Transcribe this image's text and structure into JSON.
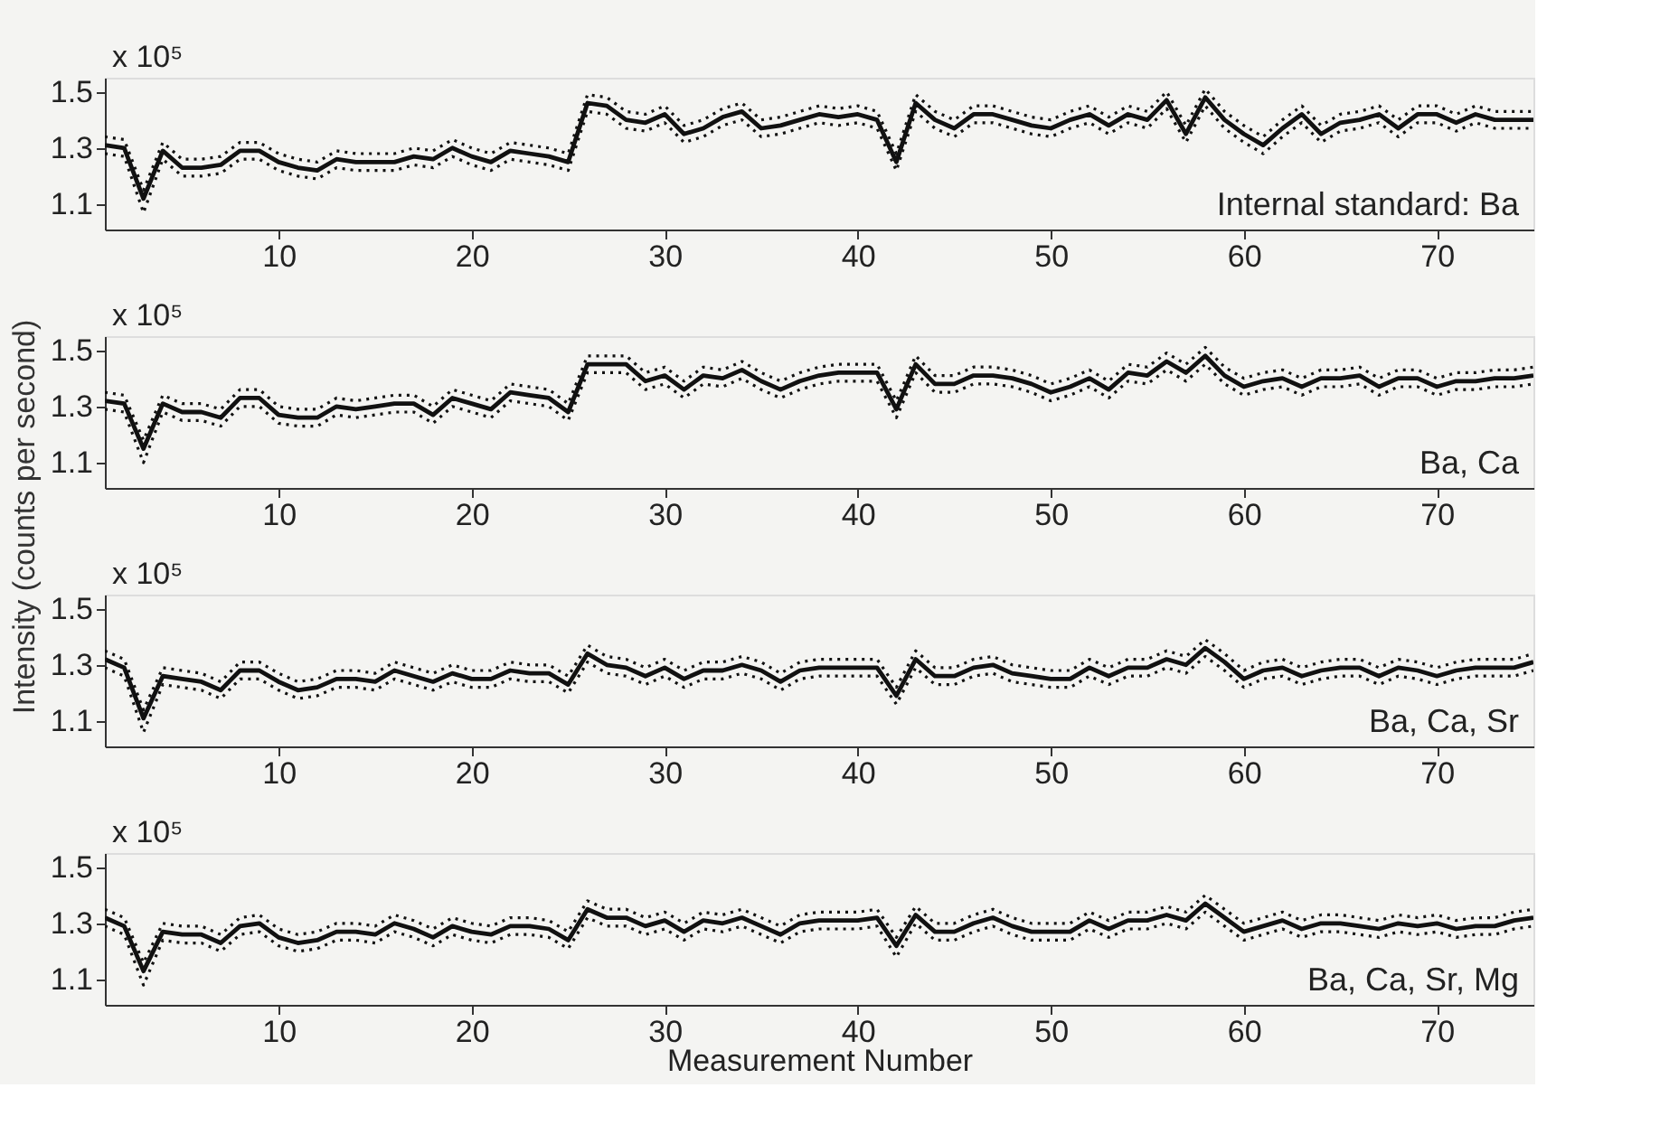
{
  "chart_data": [
    {
      "type": "line",
      "ylabel": "Intensity (counts per second)",
      "annotations": [
        "x 10⁵",
        "Internal standard: Ba"
      ],
      "xlim": [
        1,
        75
      ],
      "xticks": [
        10,
        20,
        30,
        40,
        50,
        60,
        70
      ],
      "ylim": [
        1.01,
        1.55
      ],
      "yticks": [
        1.1,
        1.3,
        1.5
      ],
      "grid": false,
      "legend": false,
      "x": [
        1,
        2,
        3,
        4,
        5,
        6,
        7,
        8,
        9,
        10,
        11,
        12,
        13,
        14,
        15,
        16,
        17,
        18,
        19,
        20,
        21,
        22,
        23,
        24,
        25,
        26,
        27,
        28,
        29,
        30,
        31,
        32,
        33,
        34,
        35,
        36,
        37,
        38,
        39,
        40,
        41,
        42,
        43,
        44,
        45,
        46,
        47,
        48,
        49,
        50,
        51,
        52,
        53,
        54,
        55,
        56,
        57,
        58,
        59,
        60,
        61,
        62,
        63,
        64,
        65,
        66,
        67,
        68,
        69,
        70,
        71,
        72,
        73,
        74,
        75
      ],
      "series": [
        {
          "color": "#111111",
          "line_style": "solid",
          "values": [
            1.31,
            1.3,
            1.12,
            1.29,
            1.23,
            1.23,
            1.24,
            1.29,
            1.29,
            1.25,
            1.23,
            1.22,
            1.26,
            1.25,
            1.25,
            1.25,
            1.27,
            1.26,
            1.3,
            1.27,
            1.25,
            1.29,
            1.28,
            1.27,
            1.25,
            1.46,
            1.45,
            1.4,
            1.39,
            1.42,
            1.35,
            1.37,
            1.41,
            1.43,
            1.37,
            1.38,
            1.4,
            1.42,
            1.41,
            1.42,
            1.4,
            1.25,
            1.46,
            1.4,
            1.37,
            1.42,
            1.42,
            1.4,
            1.38,
            1.37,
            1.4,
            1.42,
            1.38,
            1.42,
            1.4,
            1.47,
            1.35,
            1.48,
            1.4,
            1.35,
            1.31,
            1.37,
            1.42,
            1.35,
            1.39,
            1.4,
            1.42,
            1.37,
            1.42,
            1.42,
            1.39,
            1.42,
            1.4,
            1.4,
            1.4
          ]
        },
        {
          "color": "#111111",
          "line_style": "dotted",
          "values": [
            1.34,
            1.33,
            1.15,
            1.32,
            1.26,
            1.26,
            1.27,
            1.32,
            1.32,
            1.28,
            1.26,
            1.25,
            1.29,
            1.28,
            1.28,
            1.28,
            1.3,
            1.29,
            1.33,
            1.3,
            1.28,
            1.32,
            1.31,
            1.3,
            1.28,
            1.49,
            1.48,
            1.43,
            1.42,
            1.45,
            1.38,
            1.4,
            1.44,
            1.46,
            1.4,
            1.41,
            1.43,
            1.45,
            1.44,
            1.45,
            1.43,
            1.28,
            1.49,
            1.43,
            1.4,
            1.45,
            1.45,
            1.43,
            1.41,
            1.4,
            1.43,
            1.45,
            1.41,
            1.45,
            1.43,
            1.5,
            1.38,
            1.51,
            1.43,
            1.38,
            1.34,
            1.4,
            1.45,
            1.38,
            1.42,
            1.43,
            1.45,
            1.4,
            1.45,
            1.45,
            1.42,
            1.45,
            1.43,
            1.43,
            1.43
          ]
        },
        {
          "color": "#111111",
          "line_style": "dotted",
          "values": [
            1.28,
            1.27,
            1.07,
            1.26,
            1.2,
            1.2,
            1.21,
            1.26,
            1.26,
            1.22,
            1.2,
            1.19,
            1.23,
            1.22,
            1.22,
            1.22,
            1.24,
            1.23,
            1.27,
            1.24,
            1.22,
            1.26,
            1.25,
            1.24,
            1.22,
            1.43,
            1.42,
            1.37,
            1.36,
            1.39,
            1.32,
            1.34,
            1.38,
            1.4,
            1.34,
            1.35,
            1.37,
            1.39,
            1.38,
            1.39,
            1.37,
            1.22,
            1.43,
            1.37,
            1.34,
            1.39,
            1.39,
            1.37,
            1.35,
            1.34,
            1.37,
            1.39,
            1.35,
            1.39,
            1.37,
            1.44,
            1.32,
            1.45,
            1.37,
            1.32,
            1.28,
            1.34,
            1.39,
            1.32,
            1.36,
            1.37,
            1.39,
            1.34,
            1.39,
            1.39,
            1.36,
            1.39,
            1.37,
            1.37,
            1.37
          ]
        }
      ]
    },
    {
      "type": "line",
      "annotations": [
        "x 10⁵",
        "Ba, Ca"
      ],
      "xlim": [
        1,
        75
      ],
      "xticks": [
        10,
        20,
        30,
        40,
        50,
        60,
        70
      ],
      "ylim": [
        1.01,
        1.55
      ],
      "yticks": [
        1.1,
        1.3,
        1.5
      ],
      "grid": false,
      "legend": false,
      "x": [
        1,
        2,
        3,
        4,
        5,
        6,
        7,
        8,
        9,
        10,
        11,
        12,
        13,
        14,
        15,
        16,
        17,
        18,
        19,
        20,
        21,
        22,
        23,
        24,
        25,
        26,
        27,
        28,
        29,
        30,
        31,
        32,
        33,
        34,
        35,
        36,
        37,
        38,
        39,
        40,
        41,
        42,
        43,
        44,
        45,
        46,
        47,
        48,
        49,
        50,
        51,
        52,
        53,
        54,
        55,
        56,
        57,
        58,
        59,
        60,
        61,
        62,
        63,
        64,
        65,
        66,
        67,
        68,
        69,
        70,
        71,
        72,
        73,
        74,
        75
      ],
      "series": [
        {
          "color": "#111111",
          "line_style": "solid",
          "values": [
            1.32,
            1.31,
            1.15,
            1.31,
            1.28,
            1.28,
            1.26,
            1.33,
            1.33,
            1.27,
            1.26,
            1.26,
            1.3,
            1.29,
            1.3,
            1.31,
            1.31,
            1.27,
            1.33,
            1.31,
            1.29,
            1.35,
            1.34,
            1.33,
            1.28,
            1.45,
            1.45,
            1.45,
            1.39,
            1.41,
            1.36,
            1.41,
            1.4,
            1.43,
            1.39,
            1.36,
            1.39,
            1.41,
            1.42,
            1.42,
            1.42,
            1.29,
            1.45,
            1.38,
            1.38,
            1.41,
            1.41,
            1.4,
            1.38,
            1.35,
            1.37,
            1.4,
            1.36,
            1.42,
            1.41,
            1.46,
            1.42,
            1.48,
            1.41,
            1.37,
            1.39,
            1.4,
            1.37,
            1.4,
            1.4,
            1.41,
            1.37,
            1.4,
            1.4,
            1.37,
            1.39,
            1.39,
            1.4,
            1.4,
            1.41
          ]
        },
        {
          "color": "#111111",
          "line_style": "dotted",
          "values": [
            1.35,
            1.34,
            1.18,
            1.34,
            1.31,
            1.31,
            1.29,
            1.36,
            1.36,
            1.3,
            1.29,
            1.29,
            1.33,
            1.32,
            1.33,
            1.34,
            1.34,
            1.3,
            1.36,
            1.34,
            1.32,
            1.38,
            1.37,
            1.36,
            1.31,
            1.48,
            1.48,
            1.48,
            1.42,
            1.44,
            1.39,
            1.44,
            1.43,
            1.46,
            1.42,
            1.39,
            1.42,
            1.44,
            1.45,
            1.45,
            1.45,
            1.32,
            1.48,
            1.41,
            1.41,
            1.44,
            1.44,
            1.43,
            1.41,
            1.38,
            1.4,
            1.43,
            1.39,
            1.45,
            1.44,
            1.49,
            1.45,
            1.51,
            1.44,
            1.4,
            1.42,
            1.43,
            1.4,
            1.43,
            1.43,
            1.44,
            1.4,
            1.43,
            1.43,
            1.4,
            1.42,
            1.42,
            1.43,
            1.43,
            1.44
          ]
        },
        {
          "color": "#111111",
          "line_style": "dotted",
          "values": [
            1.29,
            1.28,
            1.1,
            1.28,
            1.25,
            1.25,
            1.23,
            1.3,
            1.3,
            1.24,
            1.23,
            1.23,
            1.27,
            1.26,
            1.27,
            1.28,
            1.28,
            1.24,
            1.3,
            1.28,
            1.26,
            1.32,
            1.31,
            1.3,
            1.25,
            1.42,
            1.42,
            1.42,
            1.36,
            1.38,
            1.33,
            1.38,
            1.37,
            1.4,
            1.36,
            1.33,
            1.36,
            1.38,
            1.39,
            1.39,
            1.39,
            1.26,
            1.42,
            1.35,
            1.35,
            1.38,
            1.38,
            1.37,
            1.35,
            1.32,
            1.34,
            1.37,
            1.33,
            1.39,
            1.38,
            1.43,
            1.39,
            1.45,
            1.38,
            1.34,
            1.36,
            1.37,
            1.34,
            1.37,
            1.37,
            1.38,
            1.34,
            1.37,
            1.37,
            1.34,
            1.36,
            1.36,
            1.37,
            1.37,
            1.38
          ]
        }
      ]
    },
    {
      "type": "line",
      "annotations": [
        "x 10⁵",
        "Ba, Ca, Sr"
      ],
      "xlim": [
        1,
        75
      ],
      "xticks": [
        10,
        20,
        30,
        40,
        50,
        60,
        70
      ],
      "ylim": [
        1.01,
        1.55
      ],
      "yticks": [
        1.1,
        1.3,
        1.5
      ],
      "grid": false,
      "legend": false,
      "x": [
        1,
        2,
        3,
        4,
        5,
        6,
        7,
        8,
        9,
        10,
        11,
        12,
        13,
        14,
        15,
        16,
        17,
        18,
        19,
        20,
        21,
        22,
        23,
        24,
        25,
        26,
        27,
        28,
        29,
        30,
        31,
        32,
        33,
        34,
        35,
        36,
        37,
        38,
        39,
        40,
        41,
        42,
        43,
        44,
        45,
        46,
        47,
        48,
        49,
        50,
        51,
        52,
        53,
        54,
        55,
        56,
        57,
        58,
        59,
        60,
        61,
        62,
        63,
        64,
        65,
        66,
        67,
        68,
        69,
        70,
        71,
        72,
        73,
        74,
        75
      ],
      "series": [
        {
          "color": "#111111",
          "line_style": "solid",
          "values": [
            1.32,
            1.29,
            1.11,
            1.26,
            1.25,
            1.24,
            1.21,
            1.28,
            1.28,
            1.24,
            1.21,
            1.22,
            1.25,
            1.25,
            1.24,
            1.28,
            1.26,
            1.24,
            1.27,
            1.25,
            1.25,
            1.28,
            1.27,
            1.27,
            1.23,
            1.34,
            1.3,
            1.29,
            1.26,
            1.29,
            1.25,
            1.28,
            1.28,
            1.3,
            1.28,
            1.24,
            1.28,
            1.29,
            1.29,
            1.29,
            1.29,
            1.19,
            1.32,
            1.26,
            1.26,
            1.29,
            1.3,
            1.27,
            1.26,
            1.25,
            1.25,
            1.29,
            1.26,
            1.29,
            1.29,
            1.32,
            1.3,
            1.36,
            1.31,
            1.25,
            1.28,
            1.29,
            1.26,
            1.28,
            1.29,
            1.29,
            1.26,
            1.29,
            1.28,
            1.26,
            1.28,
            1.29,
            1.29,
            1.29,
            1.31
          ]
        },
        {
          "color": "#111111",
          "line_style": "dotted",
          "values": [
            1.35,
            1.32,
            1.14,
            1.29,
            1.28,
            1.27,
            1.24,
            1.31,
            1.31,
            1.27,
            1.24,
            1.25,
            1.28,
            1.28,
            1.27,
            1.31,
            1.29,
            1.27,
            1.3,
            1.28,
            1.28,
            1.31,
            1.3,
            1.3,
            1.26,
            1.37,
            1.33,
            1.32,
            1.29,
            1.32,
            1.28,
            1.31,
            1.31,
            1.33,
            1.31,
            1.27,
            1.31,
            1.32,
            1.32,
            1.32,
            1.32,
            1.22,
            1.35,
            1.29,
            1.29,
            1.32,
            1.33,
            1.3,
            1.29,
            1.28,
            1.28,
            1.32,
            1.29,
            1.32,
            1.32,
            1.35,
            1.33,
            1.39,
            1.34,
            1.28,
            1.31,
            1.32,
            1.29,
            1.31,
            1.32,
            1.32,
            1.29,
            1.32,
            1.31,
            1.29,
            1.31,
            1.32,
            1.32,
            1.32,
            1.34
          ]
        },
        {
          "color": "#111111",
          "line_style": "dotted",
          "values": [
            1.29,
            1.26,
            1.06,
            1.23,
            1.22,
            1.21,
            1.18,
            1.25,
            1.25,
            1.21,
            1.18,
            1.19,
            1.22,
            1.22,
            1.21,
            1.25,
            1.23,
            1.21,
            1.24,
            1.22,
            1.22,
            1.25,
            1.24,
            1.24,
            1.2,
            1.31,
            1.27,
            1.26,
            1.23,
            1.26,
            1.22,
            1.25,
            1.25,
            1.27,
            1.25,
            1.21,
            1.25,
            1.26,
            1.26,
            1.26,
            1.26,
            1.16,
            1.29,
            1.23,
            1.23,
            1.26,
            1.27,
            1.24,
            1.23,
            1.22,
            1.22,
            1.26,
            1.23,
            1.26,
            1.26,
            1.29,
            1.27,
            1.33,
            1.28,
            1.22,
            1.25,
            1.26,
            1.23,
            1.25,
            1.26,
            1.26,
            1.23,
            1.26,
            1.25,
            1.23,
            1.25,
            1.26,
            1.26,
            1.26,
            1.28
          ]
        }
      ]
    },
    {
      "type": "line",
      "xlabel": "Measurement Number",
      "annotations": [
        "x 10⁵",
        "Ba, Ca, Sr, Mg"
      ],
      "xlim": [
        1,
        75
      ],
      "xticks": [
        10,
        20,
        30,
        40,
        50,
        60,
        70
      ],
      "ylim": [
        1.01,
        1.55
      ],
      "yticks": [
        1.1,
        1.3,
        1.5
      ],
      "grid": false,
      "legend": false,
      "x": [
        1,
        2,
        3,
        4,
        5,
        6,
        7,
        8,
        9,
        10,
        11,
        12,
        13,
        14,
        15,
        16,
        17,
        18,
        19,
        20,
        21,
        22,
        23,
        24,
        25,
        26,
        27,
        28,
        29,
        30,
        31,
        32,
        33,
        34,
        35,
        36,
        37,
        38,
        39,
        40,
        41,
        42,
        43,
        44,
        45,
        46,
        47,
        48,
        49,
        50,
        51,
        52,
        53,
        54,
        55,
        56,
        57,
        58,
        59,
        60,
        61,
        62,
        63,
        64,
        65,
        66,
        67,
        68,
        69,
        70,
        71,
        72,
        73,
        74,
        75
      ],
      "series": [
        {
          "color": "#111111",
          "line_style": "solid",
          "values": [
            1.32,
            1.29,
            1.13,
            1.27,
            1.26,
            1.26,
            1.23,
            1.29,
            1.3,
            1.25,
            1.23,
            1.24,
            1.27,
            1.27,
            1.26,
            1.3,
            1.28,
            1.25,
            1.29,
            1.27,
            1.26,
            1.29,
            1.29,
            1.28,
            1.24,
            1.35,
            1.32,
            1.32,
            1.29,
            1.31,
            1.27,
            1.31,
            1.3,
            1.32,
            1.29,
            1.26,
            1.3,
            1.31,
            1.31,
            1.31,
            1.32,
            1.22,
            1.33,
            1.27,
            1.27,
            1.3,
            1.32,
            1.29,
            1.27,
            1.27,
            1.27,
            1.31,
            1.28,
            1.31,
            1.31,
            1.33,
            1.31,
            1.37,
            1.32,
            1.27,
            1.29,
            1.31,
            1.28,
            1.3,
            1.3,
            1.29,
            1.28,
            1.3,
            1.29,
            1.3,
            1.28,
            1.29,
            1.29,
            1.31,
            1.32
          ]
        },
        {
          "color": "#111111",
          "line_style": "dotted",
          "values": [
            1.35,
            1.32,
            1.16,
            1.3,
            1.29,
            1.29,
            1.26,
            1.32,
            1.33,
            1.28,
            1.26,
            1.27,
            1.3,
            1.3,
            1.29,
            1.33,
            1.31,
            1.28,
            1.32,
            1.3,
            1.29,
            1.32,
            1.32,
            1.31,
            1.27,
            1.38,
            1.35,
            1.35,
            1.32,
            1.34,
            1.3,
            1.34,
            1.33,
            1.35,
            1.32,
            1.29,
            1.33,
            1.34,
            1.34,
            1.34,
            1.35,
            1.25,
            1.36,
            1.3,
            1.3,
            1.33,
            1.35,
            1.32,
            1.3,
            1.3,
            1.3,
            1.34,
            1.31,
            1.34,
            1.34,
            1.36,
            1.34,
            1.4,
            1.35,
            1.3,
            1.32,
            1.34,
            1.31,
            1.33,
            1.33,
            1.32,
            1.31,
            1.33,
            1.32,
            1.33,
            1.31,
            1.32,
            1.32,
            1.34,
            1.35
          ]
        },
        {
          "color": "#111111",
          "line_style": "dotted",
          "values": [
            1.29,
            1.26,
            1.08,
            1.24,
            1.23,
            1.23,
            1.2,
            1.26,
            1.27,
            1.22,
            1.2,
            1.21,
            1.24,
            1.24,
            1.23,
            1.27,
            1.25,
            1.22,
            1.26,
            1.24,
            1.23,
            1.26,
            1.26,
            1.25,
            1.21,
            1.32,
            1.29,
            1.29,
            1.26,
            1.28,
            1.24,
            1.28,
            1.27,
            1.29,
            1.26,
            1.23,
            1.27,
            1.28,
            1.28,
            1.28,
            1.29,
            1.18,
            1.3,
            1.24,
            1.24,
            1.27,
            1.29,
            1.26,
            1.24,
            1.24,
            1.24,
            1.28,
            1.25,
            1.28,
            1.28,
            1.3,
            1.28,
            1.34,
            1.29,
            1.24,
            1.26,
            1.28,
            1.25,
            1.27,
            1.27,
            1.26,
            1.25,
            1.27,
            1.26,
            1.27,
            1.25,
            1.26,
            1.26,
            1.28,
            1.29
          ]
        }
      ]
    }
  ]
}
